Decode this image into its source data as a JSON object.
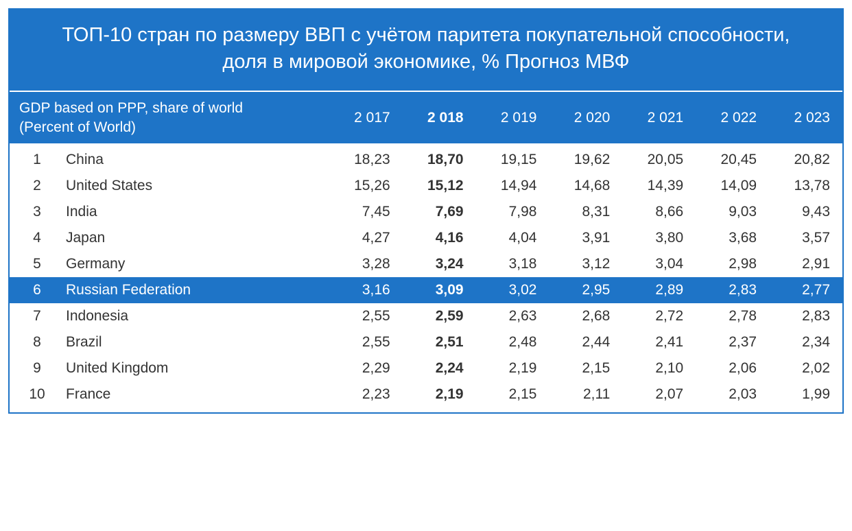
{
  "title": "ТОП-10 стран по размеру ВВП с учётом паритета покупательной способности, доля в мировой экономике, % Прогноз МВФ",
  "subhead_line1": "GDP based on PPP, share of world",
  "subhead_line2": "(Percent of World)",
  "years": [
    "2 017",
    "2 018",
    "2 019",
    "2 020",
    "2 021",
    "2 022",
    "2 023"
  ],
  "bold_year_index": 1,
  "highlight_row_index": 5,
  "colors": {
    "header_bg": "#1e74c7",
    "header_text": "#ffffff",
    "body_bg": "#ffffff",
    "body_text": "#333333",
    "border": "#1e74c7"
  },
  "fonts": {
    "title_size_pt": 22,
    "body_size_pt": 16
  },
  "columns": [
    "rank",
    "country",
    "2017",
    "2018",
    "2019",
    "2020",
    "2021",
    "2022",
    "2023"
  ],
  "rows": [
    {
      "rank": "1",
      "country": "China",
      "vals": [
        "18,23",
        "18,70",
        "19,15",
        "19,62",
        "20,05",
        "20,45",
        "20,82"
      ]
    },
    {
      "rank": "2",
      "country": "United States",
      "vals": [
        "15,26",
        "15,12",
        "14,94",
        "14,68",
        "14,39",
        "14,09",
        "13,78"
      ]
    },
    {
      "rank": "3",
      "country": "India",
      "vals": [
        "7,45",
        "7,69",
        "7,98",
        "8,31",
        "8,66",
        "9,03",
        "9,43"
      ]
    },
    {
      "rank": "4",
      "country": "Japan",
      "vals": [
        "4,27",
        "4,16",
        "4,04",
        "3,91",
        "3,80",
        "3,68",
        "3,57"
      ]
    },
    {
      "rank": "5",
      "country": "Germany",
      "vals": [
        "3,28",
        "3,24",
        "3,18",
        "3,12",
        "3,04",
        "2,98",
        "2,91"
      ]
    },
    {
      "rank": "6",
      "country": "Russian Federation",
      "vals": [
        "3,16",
        "3,09",
        "3,02",
        "2,95",
        "2,89",
        "2,83",
        "2,77"
      ]
    },
    {
      "rank": "7",
      "country": "Indonesia",
      "vals": [
        "2,55",
        "2,59",
        "2,63",
        "2,68",
        "2,72",
        "2,78",
        "2,83"
      ]
    },
    {
      "rank": "8",
      "country": "Brazil",
      "vals": [
        "2,55",
        "2,51",
        "2,48",
        "2,44",
        "2,41",
        "2,37",
        "2,34"
      ]
    },
    {
      "rank": "9",
      "country": "United Kingdom",
      "vals": [
        "2,29",
        "2,24",
        "2,19",
        "2,15",
        "2,10",
        "2,06",
        "2,02"
      ]
    },
    {
      "rank": "10",
      "country": "France",
      "vals": [
        "2,23",
        "2,19",
        "2,15",
        "2,11",
        "2,07",
        "2,03",
        "1,99"
      ]
    }
  ]
}
